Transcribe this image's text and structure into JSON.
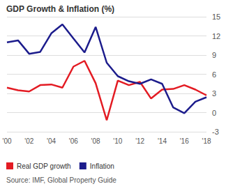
{
  "chart_data": {
    "type": "line",
    "title": "GDP Growth & Inflation (%)",
    "source": "Source: IMF, Global Property Guide",
    "categories": [
      "'00",
      null,
      "'02",
      null,
      "'04",
      null,
      "'06",
      null,
      "'08",
      null,
      "'10",
      null,
      "'12",
      null,
      "'14",
      null,
      "'16",
      null,
      "'18"
    ],
    "series": [
      {
        "name": "Real GDP growth",
        "color": "#e31b23",
        "values": [
          3.9,
          3.5,
          3.3,
          4.3,
          4.4,
          3.9,
          7.2,
          8.1,
          4.6,
          -1.2,
          5.0,
          4.3,
          4.8,
          2.2,
          3.6,
          3.7,
          4.3,
          3.6,
          2.7
        ]
      },
      {
        "name": "Inflation",
        "color": "#1c1c8c",
        "values": [
          11.0,
          11.3,
          9.2,
          9.5,
          12.4,
          13.8,
          11.6,
          9.4,
          13.4,
          7.8,
          5.7,
          4.9,
          4.5,
          5.2,
          4.5,
          0.8,
          -0.1,
          1.7,
          2.4
        ]
      }
    ],
    "ylim": [
      -3,
      15
    ],
    "yticks": [
      -3,
      0,
      3,
      6,
      9,
      12,
      15
    ],
    "grid": true,
    "legend": "bottom"
  }
}
